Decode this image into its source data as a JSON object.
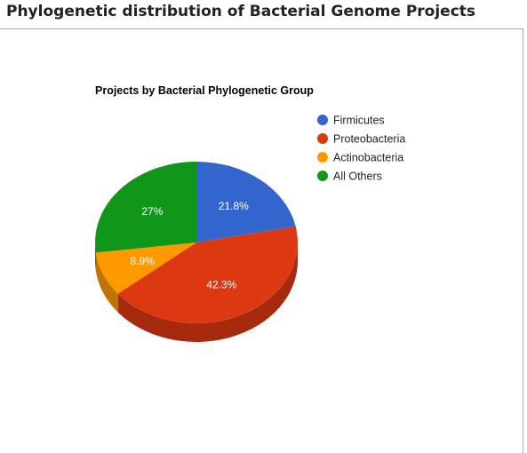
{
  "page": {
    "title": "Phylogenetic distribution of Bacterial Genome Projects"
  },
  "chart_data": {
    "type": "pie",
    "title": "Projects by Bacterial Phylogenetic Group",
    "three_d": true,
    "legend_position": "right",
    "categories": [
      "Firmicutes",
      "Proteobacteria",
      "Actinobacteria",
      "All Others"
    ],
    "values": [
      21.8,
      42.3,
      8.9,
      27
    ],
    "labels": [
      "21.8%",
      "42.3%",
      "8.9%",
      "27%"
    ],
    "colors": [
      "#3366cc",
      "#dc3912",
      "#ff9900",
      "#109618"
    ],
    "side_colors": [
      "#264c99",
      "#a52a0e",
      "#bf7300",
      "#0c7012"
    ]
  }
}
